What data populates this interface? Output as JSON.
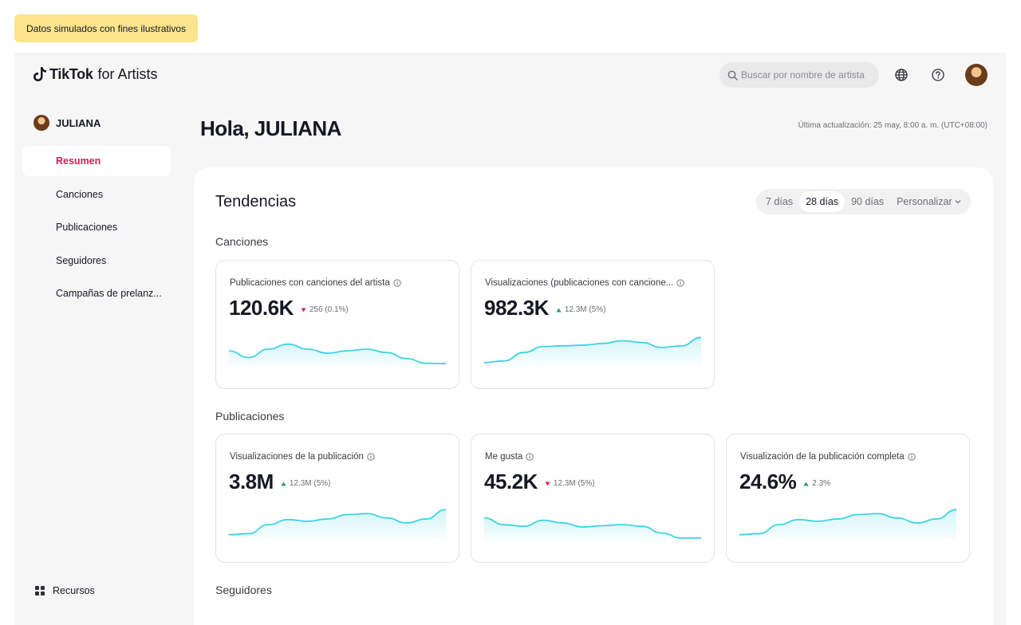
{
  "disclaimer": "Datos simulados con fines ilustrativos",
  "header": {
    "brand": "TikTok",
    "brand_suffix": "for Artists",
    "search_placeholder": "Buscar por nombre de artista"
  },
  "sidebar": {
    "user_name": "JULIANA",
    "items": [
      {
        "label": "Resumen",
        "active": true
      },
      {
        "label": "Canciones"
      },
      {
        "label": "Publicaciones"
      },
      {
        "label": "Seguidores"
      },
      {
        "label": "Campañas de prelanz..."
      }
    ],
    "resources_label": "Recursos"
  },
  "main": {
    "greeting": "Hola, JULIANA",
    "last_updated": "Última actualización: 25 may, 8:00 a. m. (UTC+08:00)",
    "panel_title": "Tendencias",
    "ranges": [
      "7 días",
      "28 días",
      "90 días",
      "Personalizar"
    ],
    "selected_range": "28 días",
    "sections": {
      "songs": "Canciones",
      "posts": "Publicaciones",
      "followers": "Seguidores"
    },
    "cards": [
      {
        "title": "Publicaciones con canciones del artista",
        "value": "120.6K",
        "delta": "256 (0.1%)",
        "trend": "down",
        "spark": [
          0.55,
          0.75,
          0.5,
          0.35,
          0.5,
          0.62,
          0.55,
          0.5,
          0.6,
          0.78,
          0.92,
          0.93
        ]
      },
      {
        "title": "Visualizaciones (publicaciones con cancione...",
        "value": "982.3K",
        "delta": "12.3M (5%)",
        "trend": "up",
        "spark": [
          0.9,
          0.85,
          0.6,
          0.42,
          0.4,
          0.38,
          0.33,
          0.25,
          0.3,
          0.45,
          0.4,
          0.15
        ]
      },
      {
        "title": "Visualizaciones de la publicación",
        "value": "3.8M",
        "delta": "12.3M (5%)",
        "trend": "up",
        "spark": [
          0.85,
          0.82,
          0.55,
          0.4,
          0.45,
          0.38,
          0.25,
          0.22,
          0.35,
          0.5,
          0.38,
          0.1
        ]
      },
      {
        "title": "Me gusta",
        "value": "45.2K",
        "delta": "12.3M (5%)",
        "trend": "down",
        "spark": [
          0.35,
          0.55,
          0.6,
          0.42,
          0.5,
          0.62,
          0.58,
          0.55,
          0.6,
          0.8,
          0.95,
          0.95
        ]
      },
      {
        "title": "Visualización de la publicación completa",
        "value": "24.6%",
        "delta": "2.3%",
        "trend": "up",
        "spark": [
          0.85,
          0.82,
          0.55,
          0.4,
          0.45,
          0.38,
          0.25,
          0.22,
          0.35,
          0.5,
          0.38,
          0.1
        ]
      }
    ]
  },
  "colors": {
    "accent": "#c8234f",
    "spark_line": "#3cd4e0",
    "up": "#1e9e67",
    "down": "#e0264f",
    "disclaimer_bg": "#fce48c"
  },
  "icons": [
    "tiktok-logo-icon",
    "search-icon",
    "globe-icon",
    "help-icon",
    "info-icon",
    "chevron-down-icon",
    "grid-icon",
    "triangle-up-icon",
    "triangle-down-icon"
  ]
}
